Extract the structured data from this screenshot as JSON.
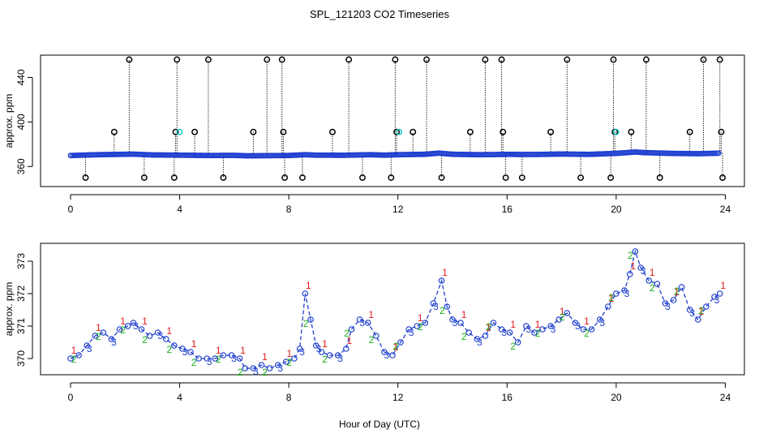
{
  "figure": {
    "title": "SPL_121203  CO2 Timeseries",
    "xlabel": "Hour of Day (UTC)"
  },
  "chart_data": [
    {
      "type": "scatter",
      "name": "top-panel",
      "ylabel": "approx. ppm",
      "xlim": [
        -1.1,
        24.7
      ],
      "ylim": [
        342,
        460
      ],
      "xticks": [
        0,
        4,
        8,
        12,
        16,
        20,
        24
      ],
      "xtick_labels": [
        "0",
        "4",
        "8",
        "12",
        "16",
        "20",
        "24"
      ],
      "yticks": [
        360,
        400,
        440
      ],
      "ytick_labels": [
        "360",
        "400",
        "440"
      ],
      "colors": {
        "series": "#1f3fd0",
        "flag": "#000000",
        "cyan": "#19c8c8",
        "stem": "#000000"
      },
      "baseline": [
        [
          0,
          369.9
        ],
        [
          1,
          370.6
        ],
        [
          2,
          371.0
        ],
        [
          2.3,
          371.1
        ],
        [
          3,
          370.4
        ],
        [
          4,
          370.2
        ],
        [
          5,
          369.9
        ],
        [
          6,
          370.0
        ],
        [
          6.5,
          369.6
        ],
        [
          7,
          369.7
        ],
        [
          8,
          369.9
        ],
        [
          8.6,
          370.6
        ],
        [
          9,
          370.2
        ],
        [
          10,
          370.1
        ],
        [
          11,
          370.6
        ],
        [
          11.5,
          370.2
        ],
        [
          12,
          370.6
        ],
        [
          13,
          371.0
        ],
        [
          13.5,
          372.0
        ],
        [
          14,
          371.0
        ],
        [
          15,
          370.6
        ],
        [
          16,
          370.9
        ],
        [
          17,
          370.8
        ],
        [
          18,
          371.2
        ],
        [
          19,
          370.9
        ],
        [
          20,
          371.8
        ],
        [
          20.7,
          373.0
        ],
        [
          21,
          372.5
        ],
        [
          22,
          371.8
        ],
        [
          23,
          371.5
        ],
        [
          23.8,
          372.0
        ]
      ],
      "high_spikes": [
        2.15,
        3.9,
        5.05,
        7.2,
        7.75,
        10.2,
        11.9,
        13.05,
        15.2,
        15.8,
        18.2,
        19.9,
        21.1,
        23.2,
        23.8
      ],
      "mid_spikes": [
        1.6,
        3.85,
        4.55,
        6.7,
        7.8,
        9.6,
        11.95,
        12.55,
        14.65,
        15.85,
        17.6,
        19.95,
        20.55,
        22.7,
        23.85
      ],
      "low_spikes": [
        0.55,
        2.7,
        3.8,
        5.6,
        7.85,
        8.5,
        10.7,
        11.75,
        13.6,
        15.95,
        16.55,
        18.7,
        19.8,
        21.6,
        23.9
      ],
      "high_value": 456,
      "mid_value": 391,
      "low_value": 350,
      "cyan_points": [
        [
          3.95,
          391
        ],
        [
          12.0,
          391
        ],
        [
          19.95,
          391
        ]
      ]
    },
    {
      "type": "line",
      "name": "bottom-panel",
      "ylabel": "approx. ppm",
      "xlim": [
        -1.1,
        24.7
      ],
      "ylim": [
        369.5,
        373.55
      ],
      "xticks": [
        0,
        4,
        8,
        12,
        16,
        20,
        24
      ],
      "xtick_labels": [
        "0",
        "4",
        "8",
        "12",
        "16",
        "20",
        "24"
      ],
      "yticks": [
        370,
        371,
        372,
        373
      ],
      "ytick_labels": [
        "370",
        "371",
        "372",
        "373"
      ],
      "colors": {
        "line": "#1f3fd0",
        "circle": "#1f3fd0",
        "label1": "#e01818",
        "label2": "#18b018",
        "label3": "#1f3fd0"
      },
      "marker_labels": [
        "1",
        "2",
        "3"
      ],
      "series": [
        [
          0.0,
          370.0
        ],
        [
          0.3,
          370.1
        ],
        [
          0.6,
          370.4
        ],
        [
          0.9,
          370.7
        ],
        [
          1.2,
          370.8
        ],
        [
          1.5,
          370.6
        ],
        [
          1.8,
          370.9
        ],
        [
          2.1,
          371.0
        ],
        [
          2.3,
          371.1
        ],
        [
          2.6,
          370.9
        ],
        [
          2.9,
          370.7
        ],
        [
          3.2,
          370.8
        ],
        [
          3.5,
          370.6
        ],
        [
          3.8,
          370.4
        ],
        [
          4.1,
          370.3
        ],
        [
          4.4,
          370.2
        ],
        [
          4.7,
          370.0
        ],
        [
          5.0,
          370.0
        ],
        [
          5.3,
          370.0
        ],
        [
          5.6,
          370.1
        ],
        [
          5.9,
          370.1
        ],
        [
          6.2,
          370.0
        ],
        [
          6.4,
          369.7
        ],
        [
          6.7,
          369.7
        ],
        [
          7.0,
          369.8
        ],
        [
          7.3,
          369.7
        ],
        [
          7.6,
          369.8
        ],
        [
          7.9,
          369.9
        ],
        [
          8.2,
          370.0
        ],
        [
          8.4,
          370.3
        ],
        [
          8.6,
          372.0
        ],
        [
          8.8,
          371.2
        ],
        [
          9.0,
          370.4
        ],
        [
          9.2,
          370.2
        ],
        [
          9.5,
          370.1
        ],
        [
          9.8,
          370.1
        ],
        [
          10.1,
          370.3
        ],
        [
          10.3,
          370.9
        ],
        [
          10.6,
          371.2
        ],
        [
          10.9,
          371.1
        ],
        [
          11.2,
          370.7
        ],
        [
          11.5,
          370.2
        ],
        [
          11.8,
          370.1
        ],
        [
          12.1,
          370.5
        ],
        [
          12.4,
          370.9
        ],
        [
          12.7,
          371.0
        ],
        [
          13.0,
          371.1
        ],
        [
          13.3,
          371.7
        ],
        [
          13.6,
          372.4
        ],
        [
          13.8,
          371.6
        ],
        [
          14.0,
          371.2
        ],
        [
          14.3,
          371.1
        ],
        [
          14.6,
          370.8
        ],
        [
          14.9,
          370.6
        ],
        [
          15.2,
          370.7
        ],
        [
          15.5,
          371.1
        ],
        [
          15.8,
          370.9
        ],
        [
          16.1,
          370.8
        ],
        [
          16.4,
          370.5
        ],
        [
          16.7,
          371.0
        ],
        [
          17.0,
          370.8
        ],
        [
          17.3,
          370.9
        ],
        [
          17.6,
          371.0
        ],
        [
          17.9,
          371.2
        ],
        [
          18.2,
          371.4
        ],
        [
          18.5,
          371.1
        ],
        [
          18.8,
          370.9
        ],
        [
          19.1,
          370.9
        ],
        [
          19.4,
          371.2
        ],
        [
          19.7,
          371.6
        ],
        [
          20.0,
          372.0
        ],
        [
          20.3,
          372.1
        ],
        [
          20.5,
          372.6
        ],
        [
          20.7,
          373.3
        ],
        [
          20.9,
          372.8
        ],
        [
          21.2,
          372.4
        ],
        [
          21.5,
          372.3
        ],
        [
          21.8,
          371.7
        ],
        [
          22.1,
          371.8
        ],
        [
          22.4,
          372.2
        ],
        [
          22.7,
          371.5
        ],
        [
          23.0,
          371.2
        ],
        [
          23.3,
          371.6
        ],
        [
          23.6,
          371.9
        ],
        [
          23.8,
          372.0
        ]
      ]
    }
  ]
}
